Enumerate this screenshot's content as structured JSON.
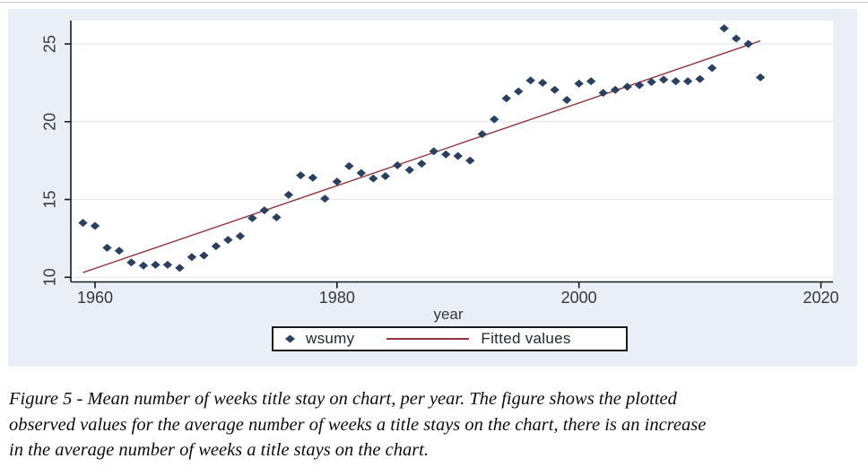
{
  "figure": {
    "caption_lines": [
      "Figure 5 - Mean number of weeks title stay on chart, per year. The figure shows the plotted",
      "observed values for the average number of weeks a title stays on the chart, there is an increase",
      "in the average number of weeks a title stays on the chart."
    ]
  },
  "chart_data": {
    "type": "scatter",
    "title": "",
    "xlabel": "year",
    "ylabel": "",
    "xlim": [
      1958,
      2021
    ],
    "ylim": [
      9.7,
      26.5
    ],
    "xticks": [
      1960,
      1980,
      2000,
      2020
    ],
    "yticks": [
      10,
      15,
      20,
      25
    ],
    "grid": "horizontal",
    "legend_position": "bottom-center",
    "series": [
      {
        "name": "wsumy",
        "type": "scatter",
        "marker": "diamond",
        "color": "#2a4061",
        "x": [
          1959,
          1960,
          1961,
          1962,
          1963,
          1964,
          1965,
          1966,
          1967,
          1968,
          1969,
          1970,
          1971,
          1972,
          1973,
          1974,
          1975,
          1976,
          1977,
          1978,
          1979,
          1980,
          1981,
          1982,
          1983,
          1984,
          1985,
          1986,
          1987,
          1988,
          1989,
          1990,
          1991,
          1992,
          1993,
          1994,
          1995,
          1996,
          1997,
          1998,
          1999,
          2000,
          2001,
          2002,
          2003,
          2004,
          2005,
          2006,
          2007,
          2008,
          2009,
          2010,
          2011,
          2012,
          2013,
          2014,
          2015
        ],
        "y": [
          13.5,
          13.3,
          11.9,
          11.7,
          10.95,
          10.75,
          10.8,
          10.8,
          10.6,
          11.3,
          11.4,
          12.0,
          12.4,
          12.65,
          13.8,
          14.3,
          13.85,
          15.3,
          16.55,
          16.4,
          15.05,
          16.15,
          17.15,
          16.7,
          16.35,
          16.5,
          17.2,
          16.9,
          17.3,
          18.1,
          17.9,
          17.8,
          17.5,
          19.2,
          20.15,
          21.5,
          21.95,
          22.65,
          22.5,
          22.05,
          21.4,
          22.45,
          22.6,
          21.85,
          22.05,
          22.25,
          22.35,
          22.55,
          22.7,
          22.6,
          22.6,
          22.75,
          23.45,
          26.0,
          25.35,
          25.0,
          22.85
        ]
      },
      {
        "name": "Fitted values",
        "type": "line",
        "color": "#90353b",
        "x": [
          1959,
          2015
        ],
        "y": [
          10.3,
          25.2
        ]
      }
    ],
    "colors": {
      "background": "#e9eff4",
      "plot_bg": "#ffffff",
      "grid": "#e2e8ee",
      "axis": "#1a1a1a",
      "tick_text": "#333944"
    }
  }
}
